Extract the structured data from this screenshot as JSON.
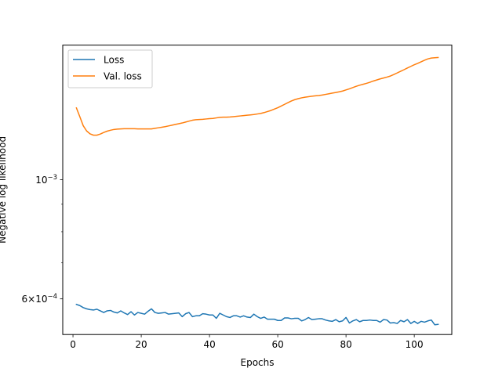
{
  "chart_data": {
    "type": "line",
    "title": "",
    "xlabel": "Epochs",
    "ylabel": "Negative log likelihood",
    "y_scale": "log",
    "xlim": [
      -3,
      111
    ],
    "ylim": [
      0.000515,
      0.00178
    ],
    "x_ticks": [
      0,
      20,
      40,
      60,
      80,
      100
    ],
    "x_tick_labels": [
      "0",
      "20",
      "40",
      "60",
      "80",
      "100"
    ],
    "y_ticks": [
      0.001,
      0.0006
    ],
    "y_tick_labels": [
      "10^-3",
      "6×10^-4"
    ],
    "y_tick_display": [
      {
        "base": "10",
        "exp": "−3"
      },
      {
        "base": "6×10",
        "exp": "−4"
      }
    ],
    "y_minor_ticks": [
      0.0007,
      0.0008,
      0.0009
    ],
    "grid": false,
    "legend_position": "upper-left",
    "series": [
      {
        "name": "Loss",
        "color": "#1f77b4",
        "x": [
          1,
          2,
          3,
          4,
          5,
          6,
          7,
          8,
          9,
          10,
          11,
          12,
          13,
          14,
          15,
          16,
          17,
          18,
          19,
          20,
          21,
          22,
          23,
          24,
          25,
          26,
          27,
          28,
          29,
          30,
          31,
          32,
          33,
          34,
          35,
          36,
          37,
          38,
          39,
          40,
          41,
          42,
          43,
          44,
          45,
          46,
          47,
          48,
          49,
          50,
          51,
          52,
          53,
          54,
          55,
          56,
          57,
          58,
          59,
          60,
          61,
          62,
          63,
          64,
          65,
          66,
          67,
          68,
          69,
          70,
          71,
          72,
          73,
          74,
          75,
          76,
          77,
          78,
          79,
          80,
          81,
          82,
          83,
          84,
          85,
          86,
          87,
          88,
          89,
          90,
          91,
          92,
          93,
          94,
          95,
          96,
          97,
          98,
          99,
          100,
          101,
          102,
          103,
          104,
          105,
          106,
          107
        ],
        "y": [
          0.000586,
          0.000583,
          0.000578,
          0.000575,
          0.000573,
          0.000572,
          0.000574,
          0.00057,
          0.000566,
          0.00057,
          0.000571,
          0.000567,
          0.000565,
          0.00057,
          0.000565,
          0.000561,
          0.000568,
          0.00056,
          0.000566,
          0.000564,
          0.000562,
          0.000569,
          0.000575,
          0.000566,
          0.000564,
          0.000565,
          0.000566,
          0.000562,
          0.000563,
          0.000564,
          0.000565,
          0.000556,
          0.000563,
          0.000566,
          0.000556,
          0.000558,
          0.000558,
          0.000563,
          0.000562,
          0.00056,
          0.00056,
          0.000552,
          0.000564,
          0.00056,
          0.000556,
          0.000554,
          0.000558,
          0.000558,
          0.000555,
          0.000558,
          0.000555,
          0.000554,
          0.000562,
          0.000556,
          0.000552,
          0.000555,
          0.00055,
          0.00055,
          0.00055,
          0.000547,
          0.000547,
          0.000553,
          0.000553,
          0.000551,
          0.000552,
          0.000552,
          0.000546,
          0.000549,
          0.000554,
          0.000549,
          0.00055,
          0.000551,
          0.000551,
          0.000548,
          0.000546,
          0.000545,
          0.000549,
          0.000544,
          0.000546,
          0.000554,
          0.000541,
          0.000546,
          0.000549,
          0.000544,
          0.000547,
          0.000547,
          0.000548,
          0.000547,
          0.000547,
          0.000543,
          0.000549,
          0.000548,
          0.000541,
          0.000542,
          0.00054,
          0.000547,
          0.000544,
          0.000549,
          0.00054,
          0.000545,
          0.00054,
          0.000545,
          0.000543,
          0.000546,
          0.000548,
          0.000537,
          0.000538
        ]
      },
      {
        "name": "Val. loss",
        "color": "#ff7f0e",
        "x": [
          1,
          2,
          3,
          4,
          5,
          6,
          7,
          8,
          9,
          10,
          11,
          12,
          13,
          14,
          15,
          16,
          17,
          18,
          19,
          20,
          21,
          22,
          23,
          24,
          25,
          26,
          27,
          28,
          29,
          30,
          31,
          32,
          33,
          34,
          35,
          36,
          37,
          38,
          39,
          40,
          41,
          42,
          43,
          44,
          45,
          46,
          47,
          48,
          49,
          50,
          51,
          52,
          53,
          54,
          55,
          56,
          57,
          58,
          59,
          60,
          61,
          62,
          63,
          64,
          65,
          66,
          67,
          68,
          69,
          70,
          71,
          72,
          73,
          74,
          75,
          76,
          77,
          78,
          79,
          80,
          81,
          82,
          83,
          84,
          85,
          86,
          87,
          88,
          89,
          90,
          91,
          92,
          93,
          94,
          95,
          96,
          97,
          98,
          99,
          100,
          101,
          102,
          103,
          104,
          105,
          106,
          107
        ],
        "y": [
          0.00136,
          0.00131,
          0.00126,
          0.001232,
          0.001217,
          0.00121,
          0.00121,
          0.001216,
          0.001224,
          0.001231,
          0.001236,
          0.00124,
          0.001242,
          0.001243,
          0.001244,
          0.001244,
          0.001244,
          0.001244,
          0.001243,
          0.001243,
          0.001243,
          0.001243,
          0.001243,
          0.001246,
          0.001249,
          0.001252,
          0.001255,
          0.001259,
          0.001263,
          0.001267,
          0.001271,
          0.001275,
          0.00128,
          0.001285,
          0.00129,
          0.001293,
          0.001294,
          0.001295,
          0.001297,
          0.001299,
          0.0013,
          0.001303,
          0.001306,
          0.001307,
          0.001307,
          0.001308,
          0.00131,
          0.001312,
          0.001314,
          0.001316,
          0.001318,
          0.00132,
          0.001322,
          0.001325,
          0.001328,
          0.001333,
          0.001339,
          0.001345,
          0.001353,
          0.001361,
          0.001371,
          0.001381,
          0.001391,
          0.001401,
          0.001409,
          0.001415,
          0.00142,
          0.001424,
          0.001427,
          0.00143,
          0.001432,
          0.001434,
          0.001437,
          0.001441,
          0.001445,
          0.001449,
          0.001453,
          0.001457,
          0.001462,
          0.001469,
          0.001476,
          0.001484,
          0.001492,
          0.001499,
          0.001505,
          0.001511,
          0.001518,
          0.001526,
          0.001533,
          0.00154,
          0.001546,
          0.001552,
          0.001559,
          0.001569,
          0.00158,
          0.001591,
          0.001602,
          0.001614,
          0.001625,
          0.001636,
          0.001646,
          0.001657,
          0.001668,
          0.001678,
          0.001684,
          0.001686,
          0.001688
        ]
      }
    ]
  }
}
